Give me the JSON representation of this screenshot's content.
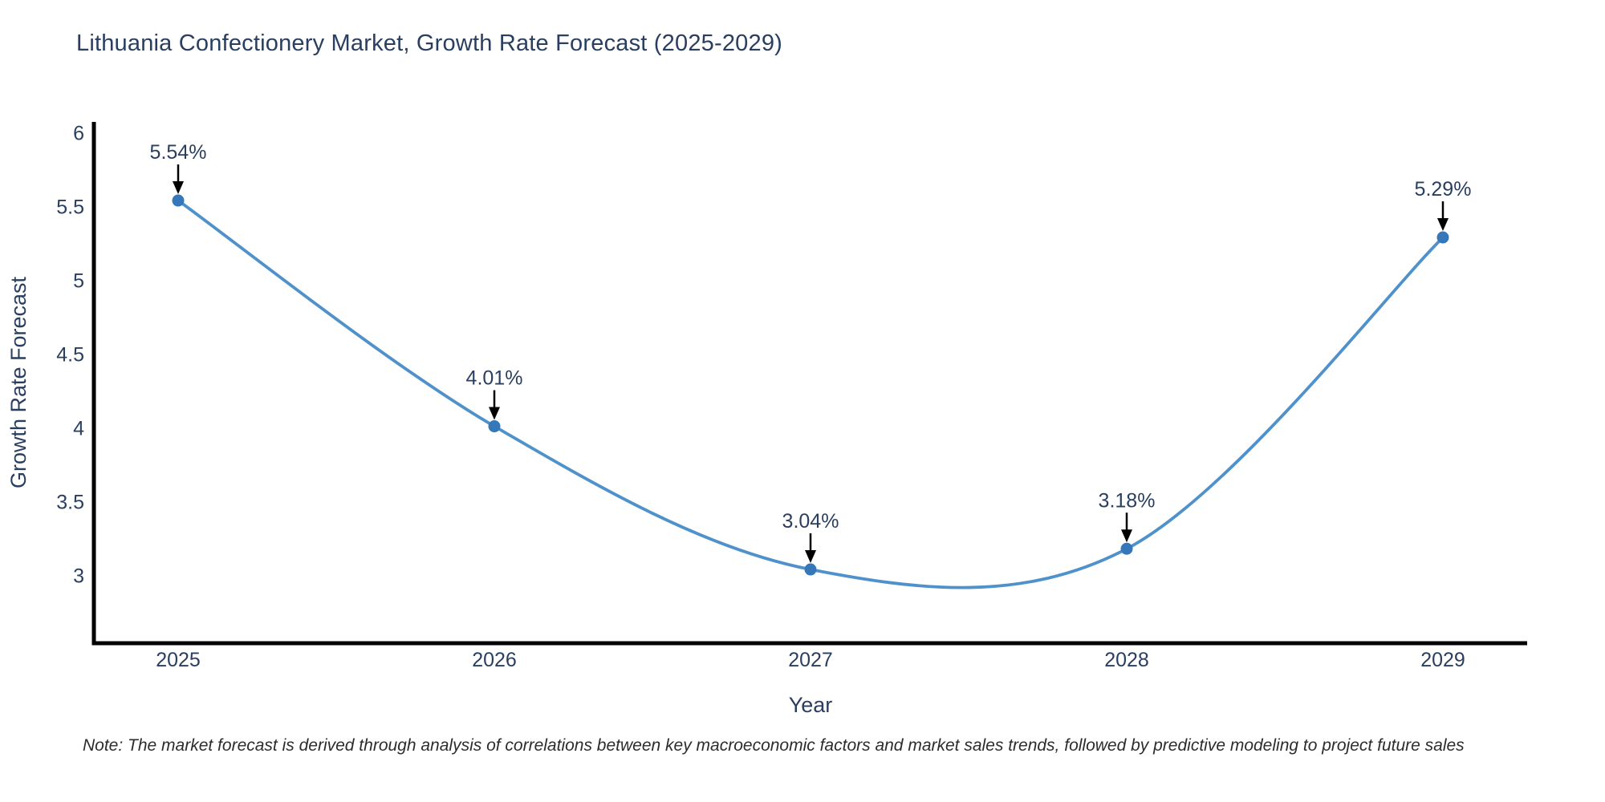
{
  "title": "Lithuania Confectionery Market, Growth Rate Forecast (2025-2029)",
  "note": "Note: The market forecast is derived through analysis of correlations between key macroeconomic factors and market sales trends, followed by predictive modeling to project future sales",
  "chart_data": {
    "type": "line",
    "line_shape": "spline",
    "x": [
      2025,
      2026,
      2027,
      2028,
      2029
    ],
    "x_tick_labels": [
      "2025",
      "2026",
      "2027",
      "2028",
      "2029"
    ],
    "series": [
      {
        "name": "Growth Rate Forecast",
        "values": [
          5.54,
          4.01,
          3.04,
          3.18,
          5.29
        ],
        "point_labels": [
          "5.54%",
          "4.01%",
          "3.04%",
          "3.18%",
          "5.29%"
        ]
      }
    ],
    "xlabel": "Year",
    "ylabel": "Growth Rate Forecast",
    "ylim": [
      2.54,
      6.073
    ],
    "yticks": {
      "values": [
        3,
        3.5,
        4,
        4.5,
        5,
        5.5,
        6
      ],
      "labels": [
        "3",
        "3.5",
        "4",
        "4.5",
        "5",
        "5.5",
        "6"
      ]
    },
    "grid": false,
    "legend_position": "none",
    "annotations_have_arrows": true,
    "colors": {
      "line": "#4e91cb",
      "marker": "#3577b8",
      "text": "#2a3f5f",
      "axis": "#000000",
      "arrow": "#000000",
      "note": "#2c2c2c",
      "background": "#ffffff"
    }
  }
}
